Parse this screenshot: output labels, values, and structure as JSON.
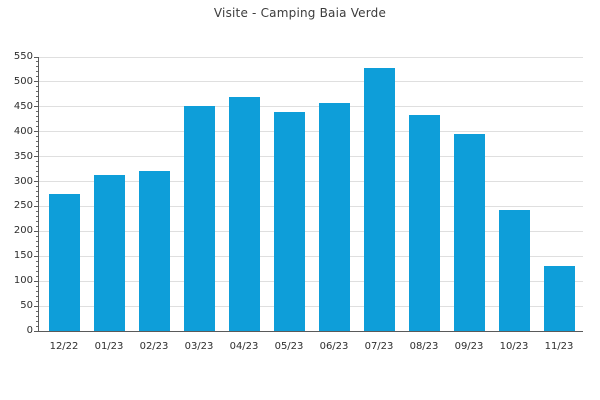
{
  "chart_data": {
    "type": "bar",
    "title": "Visite - Camping Baia Verde",
    "categories": [
      "12/22",
      "01/23",
      "02/23",
      "03/23",
      "04/23",
      "05/23",
      "06/23",
      "07/23",
      "08/23",
      "09/23",
      "10/23",
      "11/23"
    ],
    "values": [
      275,
      313,
      321,
      451,
      470,
      439,
      457,
      528,
      433,
      396,
      242,
      130
    ],
    "xlabel": "",
    "ylabel": "",
    "ylim": [
      0,
      550
    ],
    "ytick_step": 50,
    "y_minor_step": 10,
    "yticks": [
      0,
      50,
      100,
      150,
      200,
      250,
      300,
      350,
      400,
      450,
      500,
      550
    ],
    "grid": "horizontal-major",
    "legend": "none",
    "bar_color": "#0e9ed9",
    "grid_color": "#dfdfdf",
    "axis_color": "#5a5a5a",
    "title_color": "#3c3c3c",
    "tick_label_color": "#2e2e2e",
    "background_color": "#ffffff"
  }
}
